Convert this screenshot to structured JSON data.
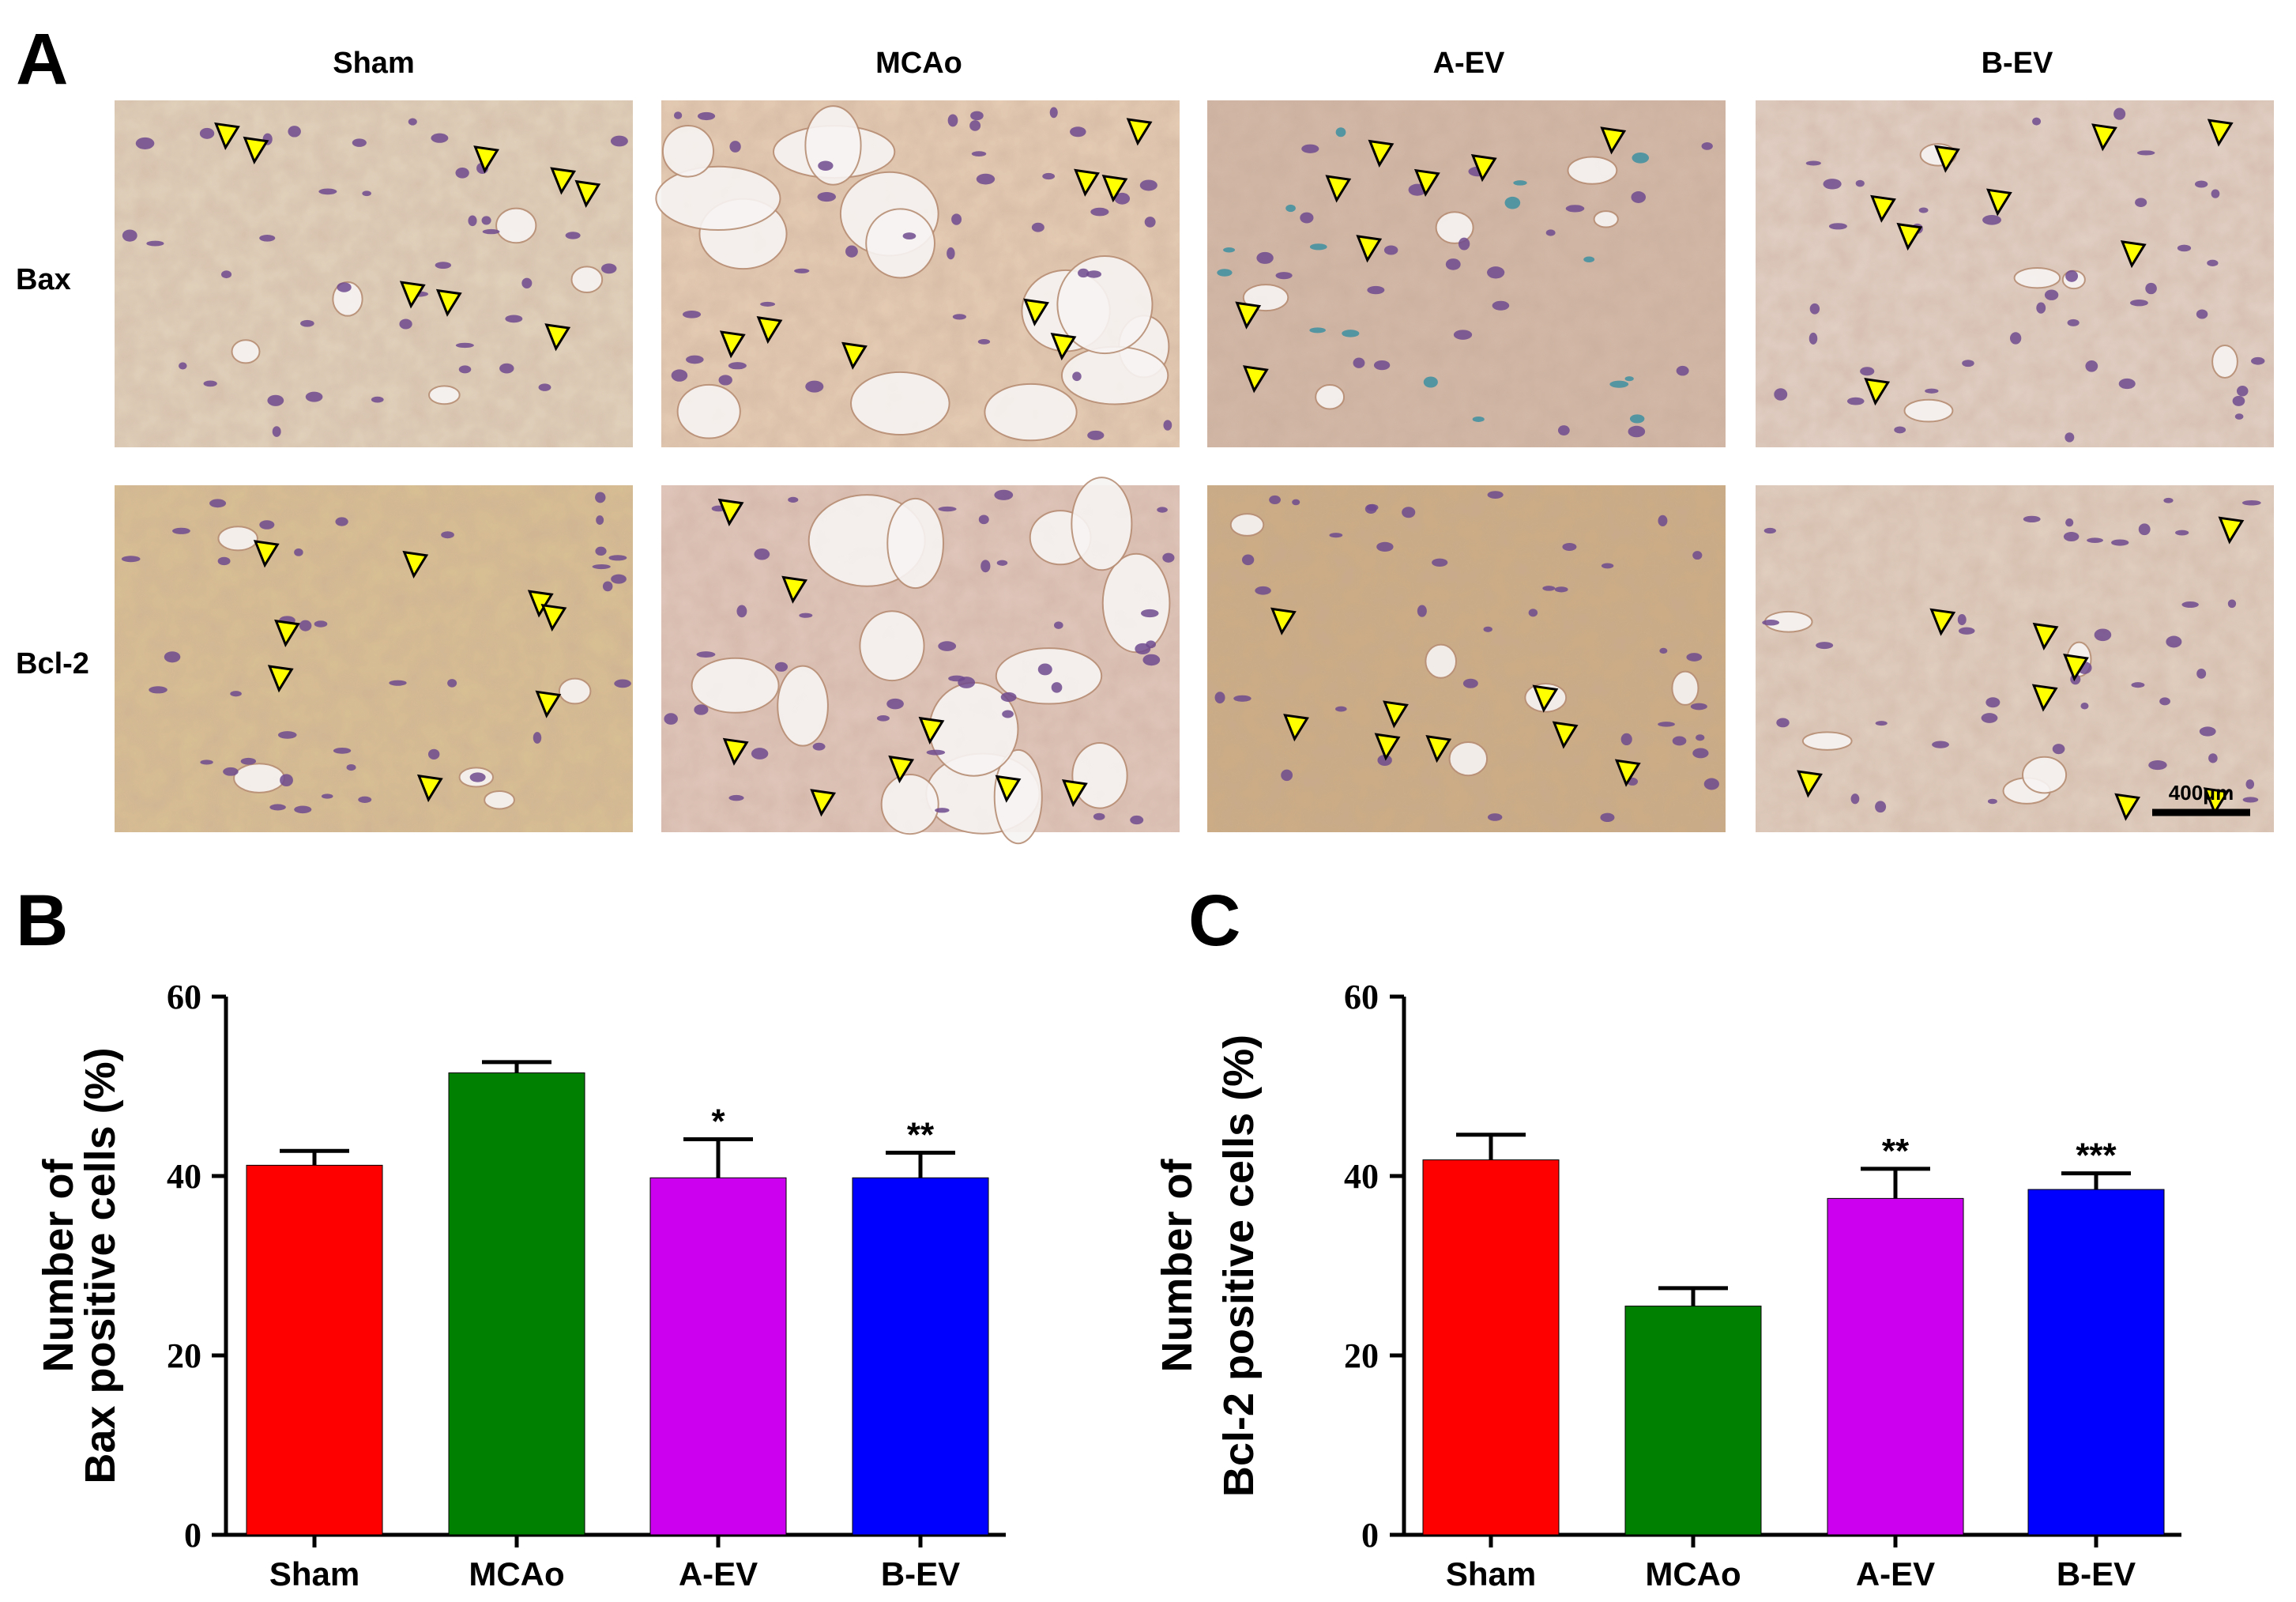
{
  "panels": {
    "a": "A",
    "b": "B",
    "c": "C"
  },
  "micrographs": {
    "columns": [
      "Sham",
      "MCAo",
      "A-EV",
      "B-EV"
    ],
    "rows": [
      "Bax",
      "Bcl-2"
    ],
    "scale_bar": "400μm",
    "tones": [
      [
        "#e2d3bd",
        "#e6cdb4",
        "#d3b9a8",
        "#e3d1c6"
      ],
      [
        "#d9c093",
        "#e1c7bc",
        "#ccad84",
        "#e2d0c1"
      ]
    ]
  },
  "chart_data": [
    {
      "type": "bar",
      "panel": "B",
      "categories": [
        "Sham",
        "MCAo",
        "A-EV",
        "B-EV"
      ],
      "values": [
        41.2,
        51.5,
        39.8,
        39.8
      ],
      "errors": [
        1.6,
        1.2,
        4.3,
        2.8
      ],
      "significance": [
        "",
        "",
        "*",
        "**"
      ],
      "colors": [
        "#ff0000",
        "#008000",
        "#cc00ee",
        "#0000ff"
      ],
      "ylabel_lines": [
        "Number of",
        "Bax positive cells (%)"
      ],
      "ylim": [
        0,
        60
      ],
      "yticks": [
        0,
        20,
        40,
        60
      ],
      "grid": false
    },
    {
      "type": "bar",
      "panel": "C",
      "categories": [
        "Sham",
        "MCAo",
        "A-EV",
        "B-EV"
      ],
      "values": [
        41.8,
        25.5,
        37.5,
        38.5
      ],
      "errors": [
        2.8,
        2.0,
        3.3,
        1.8
      ],
      "significance": [
        "",
        "",
        "**",
        "***"
      ],
      "colors": [
        "#ff0000",
        "#008000",
        "#cc00ee",
        "#0000ff"
      ],
      "ylabel_lines": [
        "Number of",
        "Bcl-2 positive cells (%)"
      ],
      "ylim": [
        0,
        60
      ],
      "yticks": [
        0,
        20,
        40,
        60
      ],
      "grid": false
    }
  ]
}
